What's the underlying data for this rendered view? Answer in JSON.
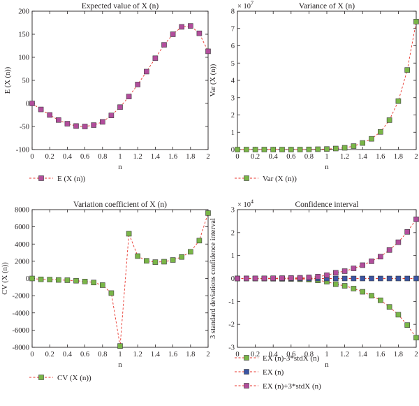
{
  "chart_data": [
    {
      "type": "line",
      "title": "Expected value of X (n)",
      "xlabel": "n",
      "ylabel": "E (X (n))",
      "xlim": [
        0,
        2
      ],
      "ylim": [
        -100,
        200
      ],
      "xticks": [
        "0",
        "0.2",
        "0.4",
        "0.6",
        "0.8",
        "1",
        "1.2",
        "1.4",
        "1.6",
        "1.8",
        "2"
      ],
      "yticks": [
        "-100",
        "-50",
        "0",
        "50",
        "100",
        "150",
        "200"
      ],
      "exponent_label": "",
      "grid": false,
      "legend_position": "bottom-left",
      "x": [
        0,
        0.1,
        0.2,
        0.3,
        0.4,
        0.5,
        0.6,
        0.7,
        0.8,
        0.9,
        1.0,
        1.1,
        1.2,
        1.3,
        1.4,
        1.5,
        1.6,
        1.7,
        1.8,
        1.9,
        2.0
      ],
      "series": [
        {
          "name": "E (X (n))",
          "color": "#b24d9c",
          "marker": "square",
          "values": [
            0,
            -13,
            -25,
            -36,
            -44,
            -49,
            -50,
            -47,
            -40,
            -26,
            -8,
            15,
            41,
            69,
            98,
            127,
            150,
            166,
            168,
            152,
            113
          ]
        }
      ]
    },
    {
      "type": "line",
      "title": "Variance of X (n)",
      "xlabel": "n",
      "ylabel": "Var (X (n))",
      "xlim": [
        0,
        2
      ],
      "ylim": [
        0,
        8
      ],
      "xticks": [
        "0",
        "0.2",
        "0.4",
        "0.6",
        "0.8",
        "1",
        "1.2",
        "1.4",
        "1.6",
        "1.8",
        "2"
      ],
      "yticks": [
        "0",
        "1",
        "2",
        "3",
        "4",
        "5",
        "6",
        "7",
        "8"
      ],
      "exponent_label": "× 10",
      "exponent_power": "7",
      "grid": false,
      "legend_position": "bottom-left",
      "x": [
        0,
        0.1,
        0.2,
        0.3,
        0.4,
        0.5,
        0.6,
        0.7,
        0.8,
        0.9,
        1.0,
        1.1,
        1.2,
        1.3,
        1.4,
        1.5,
        1.6,
        1.7,
        1.8,
        1.9,
        2.0
      ],
      "series": [
        {
          "name": "Var (X (n))",
          "color": "#7ab648",
          "marker": "square",
          "values": [
            0.0,
            0.0,
            0.0,
            0.0,
            0.0,
            0.0,
            0.0,
            0.0,
            0.01,
            0.02,
            0.03,
            0.06,
            0.1,
            0.2,
            0.38,
            0.62,
            1.02,
            1.7,
            2.8,
            4.6,
            7.4
          ]
        }
      ]
    },
    {
      "type": "line",
      "title": "Variation coefficient of X (n)",
      "xlabel": "n",
      "ylabel": "CV (X (n))",
      "xlim": [
        0,
        2
      ],
      "ylim": [
        -8000,
        8000
      ],
      "xticks": [
        "0",
        "0.2",
        "0.4",
        "0.6",
        "0.8",
        "1",
        "1.2",
        "1.4",
        "1.6",
        "1.8",
        "2"
      ],
      "yticks": [
        "-8000",
        "-6000",
        "-4000",
        "-2000",
        "0",
        "2000",
        "4000",
        "6000",
        "8000"
      ],
      "exponent_label": "",
      "grid": false,
      "legend_position": "bottom-left",
      "x": [
        0,
        0.1,
        0.2,
        0.3,
        0.4,
        0.5,
        0.6,
        0.7,
        0.8,
        0.9,
        1.0,
        1.1,
        1.2,
        1.3,
        1.4,
        1.5,
        1.6,
        1.7,
        1.8,
        1.9,
        2.0
      ],
      "series": [
        {
          "name": "CV (X (n))",
          "color": "#7ab648",
          "marker": "square",
          "values": [
            0,
            -100,
            -130,
            -170,
            -200,
            -260,
            -350,
            -470,
            -770,
            -1700,
            -7850,
            5200,
            2600,
            2050,
            1900,
            1950,
            2150,
            2500,
            3100,
            4400,
            7600
          ]
        }
      ]
    },
    {
      "type": "line",
      "title": "Confidence interval",
      "xlabel": "n",
      "ylabel": "3 standard deviations confidence interval",
      "xlim": [
        0,
        2
      ],
      "ylim": [
        -3,
        3
      ],
      "xticks": [
        "0",
        "0.2",
        "0.4",
        "0.6",
        "0.8",
        "1",
        "1.2",
        "1.4",
        "1.6",
        "1.8",
        "2"
      ],
      "yticks": [
        "-3",
        "-2",
        "-1",
        "0",
        "1",
        "2",
        "3"
      ],
      "exponent_label": "× 10",
      "exponent_power": "4",
      "grid": false,
      "legend_position": "bottom-left",
      "x": [
        0,
        0.1,
        0.2,
        0.3,
        0.4,
        0.5,
        0.6,
        0.7,
        0.8,
        0.9,
        1.0,
        1.1,
        1.2,
        1.3,
        1.4,
        1.5,
        1.6,
        1.7,
        1.8,
        1.9,
        2.0
      ],
      "series": [
        {
          "name": "EX (n)-3*stdX (n)",
          "color": "#7ab648",
          "marker": "square",
          "values": [
            0,
            -0.002,
            -0.004,
            -0.006,
            -0.01,
            -0.015,
            -0.02,
            -0.03,
            -0.05,
            -0.08,
            -0.14,
            -0.25,
            -0.32,
            -0.44,
            -0.58,
            -0.75,
            -0.95,
            -1.24,
            -1.58,
            -2.03,
            -2.58
          ]
        },
        {
          "name": "EX (n)",
          "color": "#3b55a4",
          "marker": "square",
          "values": [
            0,
            0,
            0,
            0,
            0,
            0,
            0,
            0,
            0,
            0,
            0,
            0,
            0,
            0,
            0,
            0,
            0,
            0,
            0,
            0,
            0
          ]
        },
        {
          "name": "EX (n)+3*stdX (n)",
          "color": "#b24d9c",
          "marker": "square",
          "values": [
            0,
            0.002,
            0.004,
            0.006,
            0.01,
            0.015,
            0.02,
            0.03,
            0.05,
            0.08,
            0.14,
            0.25,
            0.32,
            0.44,
            0.58,
            0.75,
            0.95,
            1.24,
            1.58,
            2.03,
            2.58
          ]
        }
      ]
    }
  ]
}
